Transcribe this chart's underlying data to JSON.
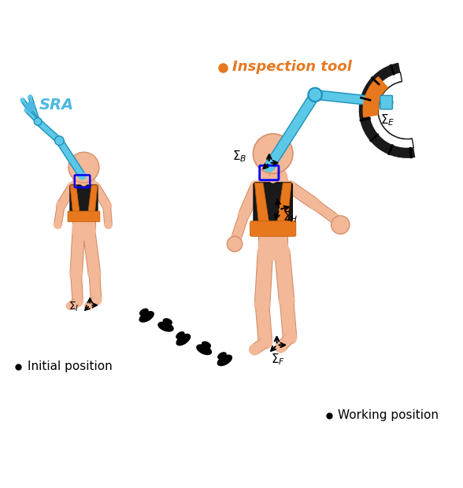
{
  "bg_color": "#ffffff",
  "skin_color": "#f2b898",
  "skin_edge": "#d4906a",
  "orange_color": "#e8781e",
  "orange_dark": "#c05a00",
  "blue_color": "#5bc8e8",
  "blue_dark": "#2090b8",
  "black": "#000000",
  "white": "#ffffff",
  "gray_light": "#cccccc",
  "sra_label_color": "#4ab8e0",
  "inspection_label_color": "#e87820",
  "label_SRA": "SRA",
  "label_inspection": "Inspection tool",
  "label_initial": "Initial position",
  "label_working": "Working position"
}
